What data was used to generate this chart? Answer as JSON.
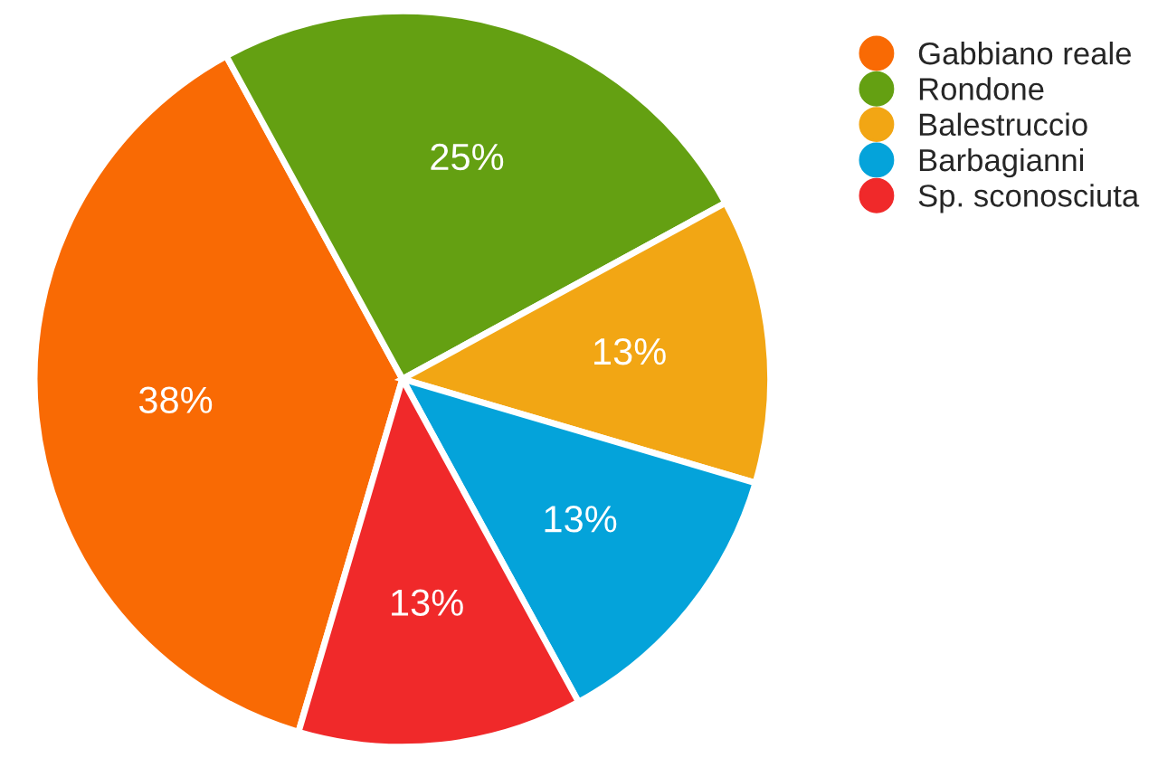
{
  "chart_data": {
    "type": "pie",
    "categories": [
      "Gabbiano reale",
      "Rondone",
      "Balestruccio",
      "Barbagianni",
      "Sp. sconosciuta"
    ],
    "values": [
      37.5,
      25,
      12.5,
      12.5,
      12.5
    ],
    "value_labels": [
      "38%",
      "25%",
      "13%",
      "13%",
      "13%"
    ],
    "colors": [
      "#f96a04",
      "#64a012",
      "#f2a614",
      "#04a3da",
      "#f0292a"
    ],
    "legend": "top right"
  }
}
